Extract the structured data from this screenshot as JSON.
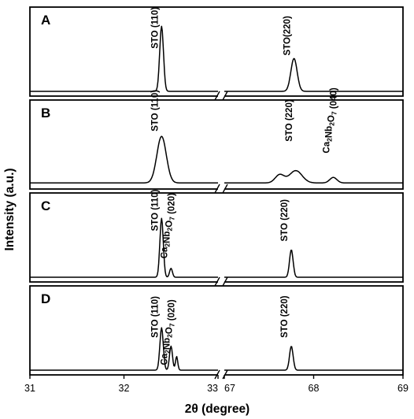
{
  "chart_data": {
    "type": "line",
    "xlabel": "2θ (degree)",
    "ylabel": "Intensity (a.u.)",
    "x_axis_break": true,
    "x_segments": [
      {
        "xlim": [
          31,
          33
        ],
        "ticks": [
          "31",
          "32",
          "33"
        ]
      },
      {
        "xlim": [
          67,
          69
        ],
        "ticks": [
          "67",
          "68",
          "69"
        ]
      }
    ],
    "grid": false,
    "legend": "none",
    "panels": [
      {
        "letter": "A",
        "baseline": 0.0,
        "ymax": 1.0,
        "peaks": [
          {
            "x": 32.4,
            "height": 0.95,
            "width": 0.02
          },
          {
            "x": 67.78,
            "height": 0.48,
            "width": 0.035
          }
        ],
        "annotations": [
          {
            "text": "STO (110)",
            "x": 32.4,
            "y": 0.55
          },
          {
            "text": "STO(220)",
            "x": 67.78,
            "y": 0.45
          }
        ]
      },
      {
        "letter": "B",
        "baseline": 0.02,
        "ymax": 1.0,
        "peaks": [
          {
            "x": 32.4,
            "height": 0.68,
            "width": 0.05
          },
          {
            "x": 67.62,
            "height": 0.12,
            "width": 0.05
          },
          {
            "x": 67.8,
            "height": 0.18,
            "width": 0.07
          },
          {
            "x": 68.22,
            "height": 0.08,
            "width": 0.04
          }
        ],
        "annotations": [
          {
            "text": "STO (110)",
            "x": 32.4,
            "y": 0.7
          },
          {
            "text": "STO (220)",
            "x": 67.8,
            "y": 0.55
          },
          {
            "text": "Ca2Nb2O7 (040)",
            "x": 68.22,
            "y": 0.38
          }
        ]
      },
      {
        "letter": "C",
        "baseline": 0.0,
        "ymax": 1.0,
        "peaks": [
          {
            "x": 32.4,
            "height": 0.86,
            "width": 0.018
          },
          {
            "x": 32.5,
            "height": 0.13,
            "width": 0.015
          },
          {
            "x": 67.75,
            "height": 0.4,
            "width": 0.02
          }
        ],
        "annotations": [
          {
            "text": "STO (110)",
            "x": 32.4,
            "y": 0.6
          },
          {
            "text": "Ca2Nb2O7 (020)",
            "x": 32.5,
            "y": 0.2
          },
          {
            "text": "STO (220)",
            "x": 67.75,
            "y": 0.45
          }
        ]
      },
      {
        "letter": "D",
        "baseline": 0.0,
        "ymax": 1.0,
        "peaks": [
          {
            "x": 32.4,
            "height": 0.62,
            "width": 0.018
          },
          {
            "x": 32.5,
            "height": 0.35,
            "width": 0.016
          },
          {
            "x": 32.56,
            "height": 0.2,
            "width": 0.012
          },
          {
            "x": 67.75,
            "height": 0.35,
            "width": 0.02
          }
        ],
        "annotations": [
          {
            "text": "STO (110)",
            "x": 32.4,
            "y": 0.4
          },
          {
            "text": "Ca2Nb2O7 (020)",
            "x": 32.5,
            "y": 0.0
          },
          {
            "text": "STO (220)",
            "x": 67.75,
            "y": 0.4
          }
        ]
      }
    ]
  }
}
